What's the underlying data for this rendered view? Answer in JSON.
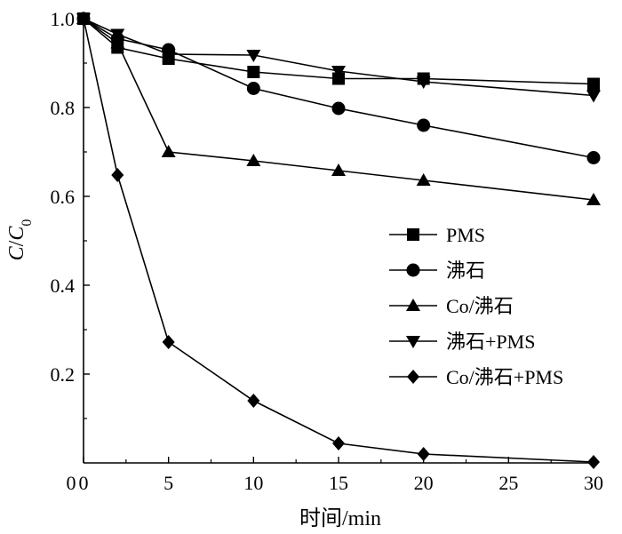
{
  "chart_data": {
    "type": "line",
    "xlabel": "时间/min",
    "ylabel_main": "C",
    "ylabel_sep": "/",
    "ylabel_sub_base": "C",
    "ylabel_sub": "0",
    "xlim": [
      0,
      30
    ],
    "ylim": [
      0,
      1.0
    ],
    "x_ticks": [
      0,
      5,
      10,
      15,
      20,
      25,
      30
    ],
    "x_tick_labels": [
      "0",
      "5",
      "10",
      "15",
      "20",
      "25",
      "30"
    ],
    "y_ticks": [
      0.2,
      0.4,
      0.6,
      0.8,
      1.0
    ],
    "y_tick_labels": [
      "0.2",
      "0.4",
      "0.6",
      "0.8",
      "1.0"
    ],
    "grid": false,
    "legend_position": "right",
    "x": [
      0,
      2,
      5,
      10,
      15,
      20,
      30
    ],
    "series": [
      {
        "name": "PMS",
        "marker": "square",
        "values": [
          1.0,
          0.935,
          0.91,
          0.88,
          0.865,
          0.865,
          0.853
        ]
      },
      {
        "name": "沸石",
        "marker": "circle",
        "values": [
          1.0,
          0.955,
          0.93,
          0.843,
          0.798,
          0.76,
          0.687
        ]
      },
      {
        "name": "Co/沸石",
        "marker": "triangle-up",
        "values": [
          1.0,
          0.945,
          0.7,
          0.68,
          0.658,
          0.636,
          0.592
        ]
      },
      {
        "name": "沸石+PMS",
        "marker": "triangle-down",
        "values": [
          1.0,
          0.965,
          0.92,
          0.918,
          0.882,
          0.858,
          0.827
        ]
      },
      {
        "name": "Co/沸石+PMS",
        "marker": "diamond",
        "values": [
          1.0,
          0.648,
          0.272,
          0.14,
          0.044,
          0.02,
          0.002
        ]
      }
    ]
  }
}
